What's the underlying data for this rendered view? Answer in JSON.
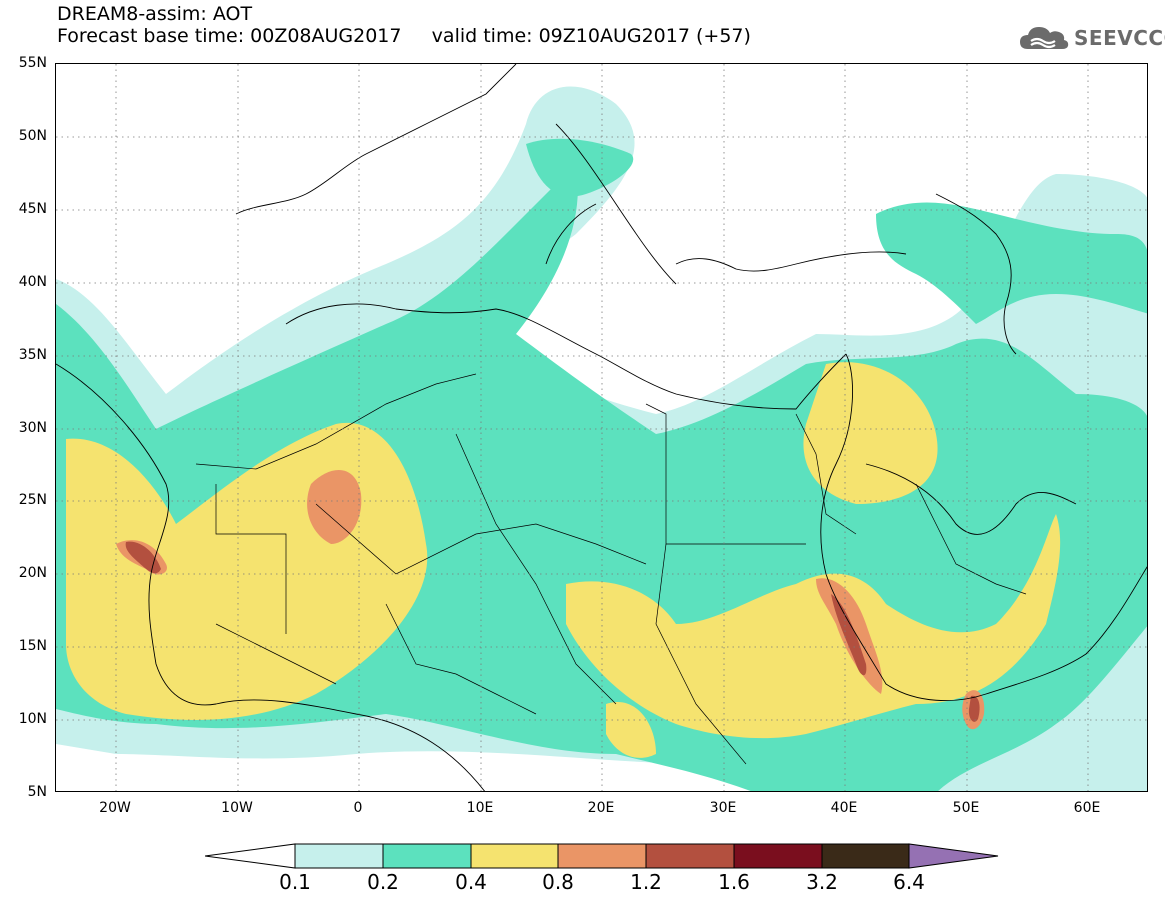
{
  "header": {
    "title_line1": "DREAM8-assim: AOT",
    "title_line2": "Forecast base time: 00Z08AUG2017     valid time: 09Z10AUG2017 (+57)"
  },
  "logo": {
    "text": "SEEVCCC",
    "icon": "cloud-icon"
  },
  "map": {
    "lat_labels": [
      "55N",
      "50N",
      "45N",
      "40N",
      "35N",
      "30N",
      "25N",
      "20N",
      "15N",
      "10N",
      "5N"
    ],
    "lon_labels": [
      "20W",
      "10W",
      "0",
      "10E",
      "20E",
      "30E",
      "40E",
      "50E",
      "60E"
    ],
    "extent": {
      "lon": [
        -25,
        65
      ],
      "lat": [
        5,
        55
      ]
    },
    "graticule": "dotted every 5 degrees"
  },
  "legend": {
    "levels": [
      "0.1",
      "0.2",
      "0.4",
      "0.8",
      "1.2",
      "1.6",
      "3.2",
      "6.4"
    ],
    "colors": [
      "#c6f0ec",
      "#5ce1be",
      "#f5e36f",
      "#ea9566",
      "#b3503f",
      "#7a0e1e",
      "#3a2a18",
      "#9571b3"
    ],
    "under_color": "#ffffff"
  }
}
